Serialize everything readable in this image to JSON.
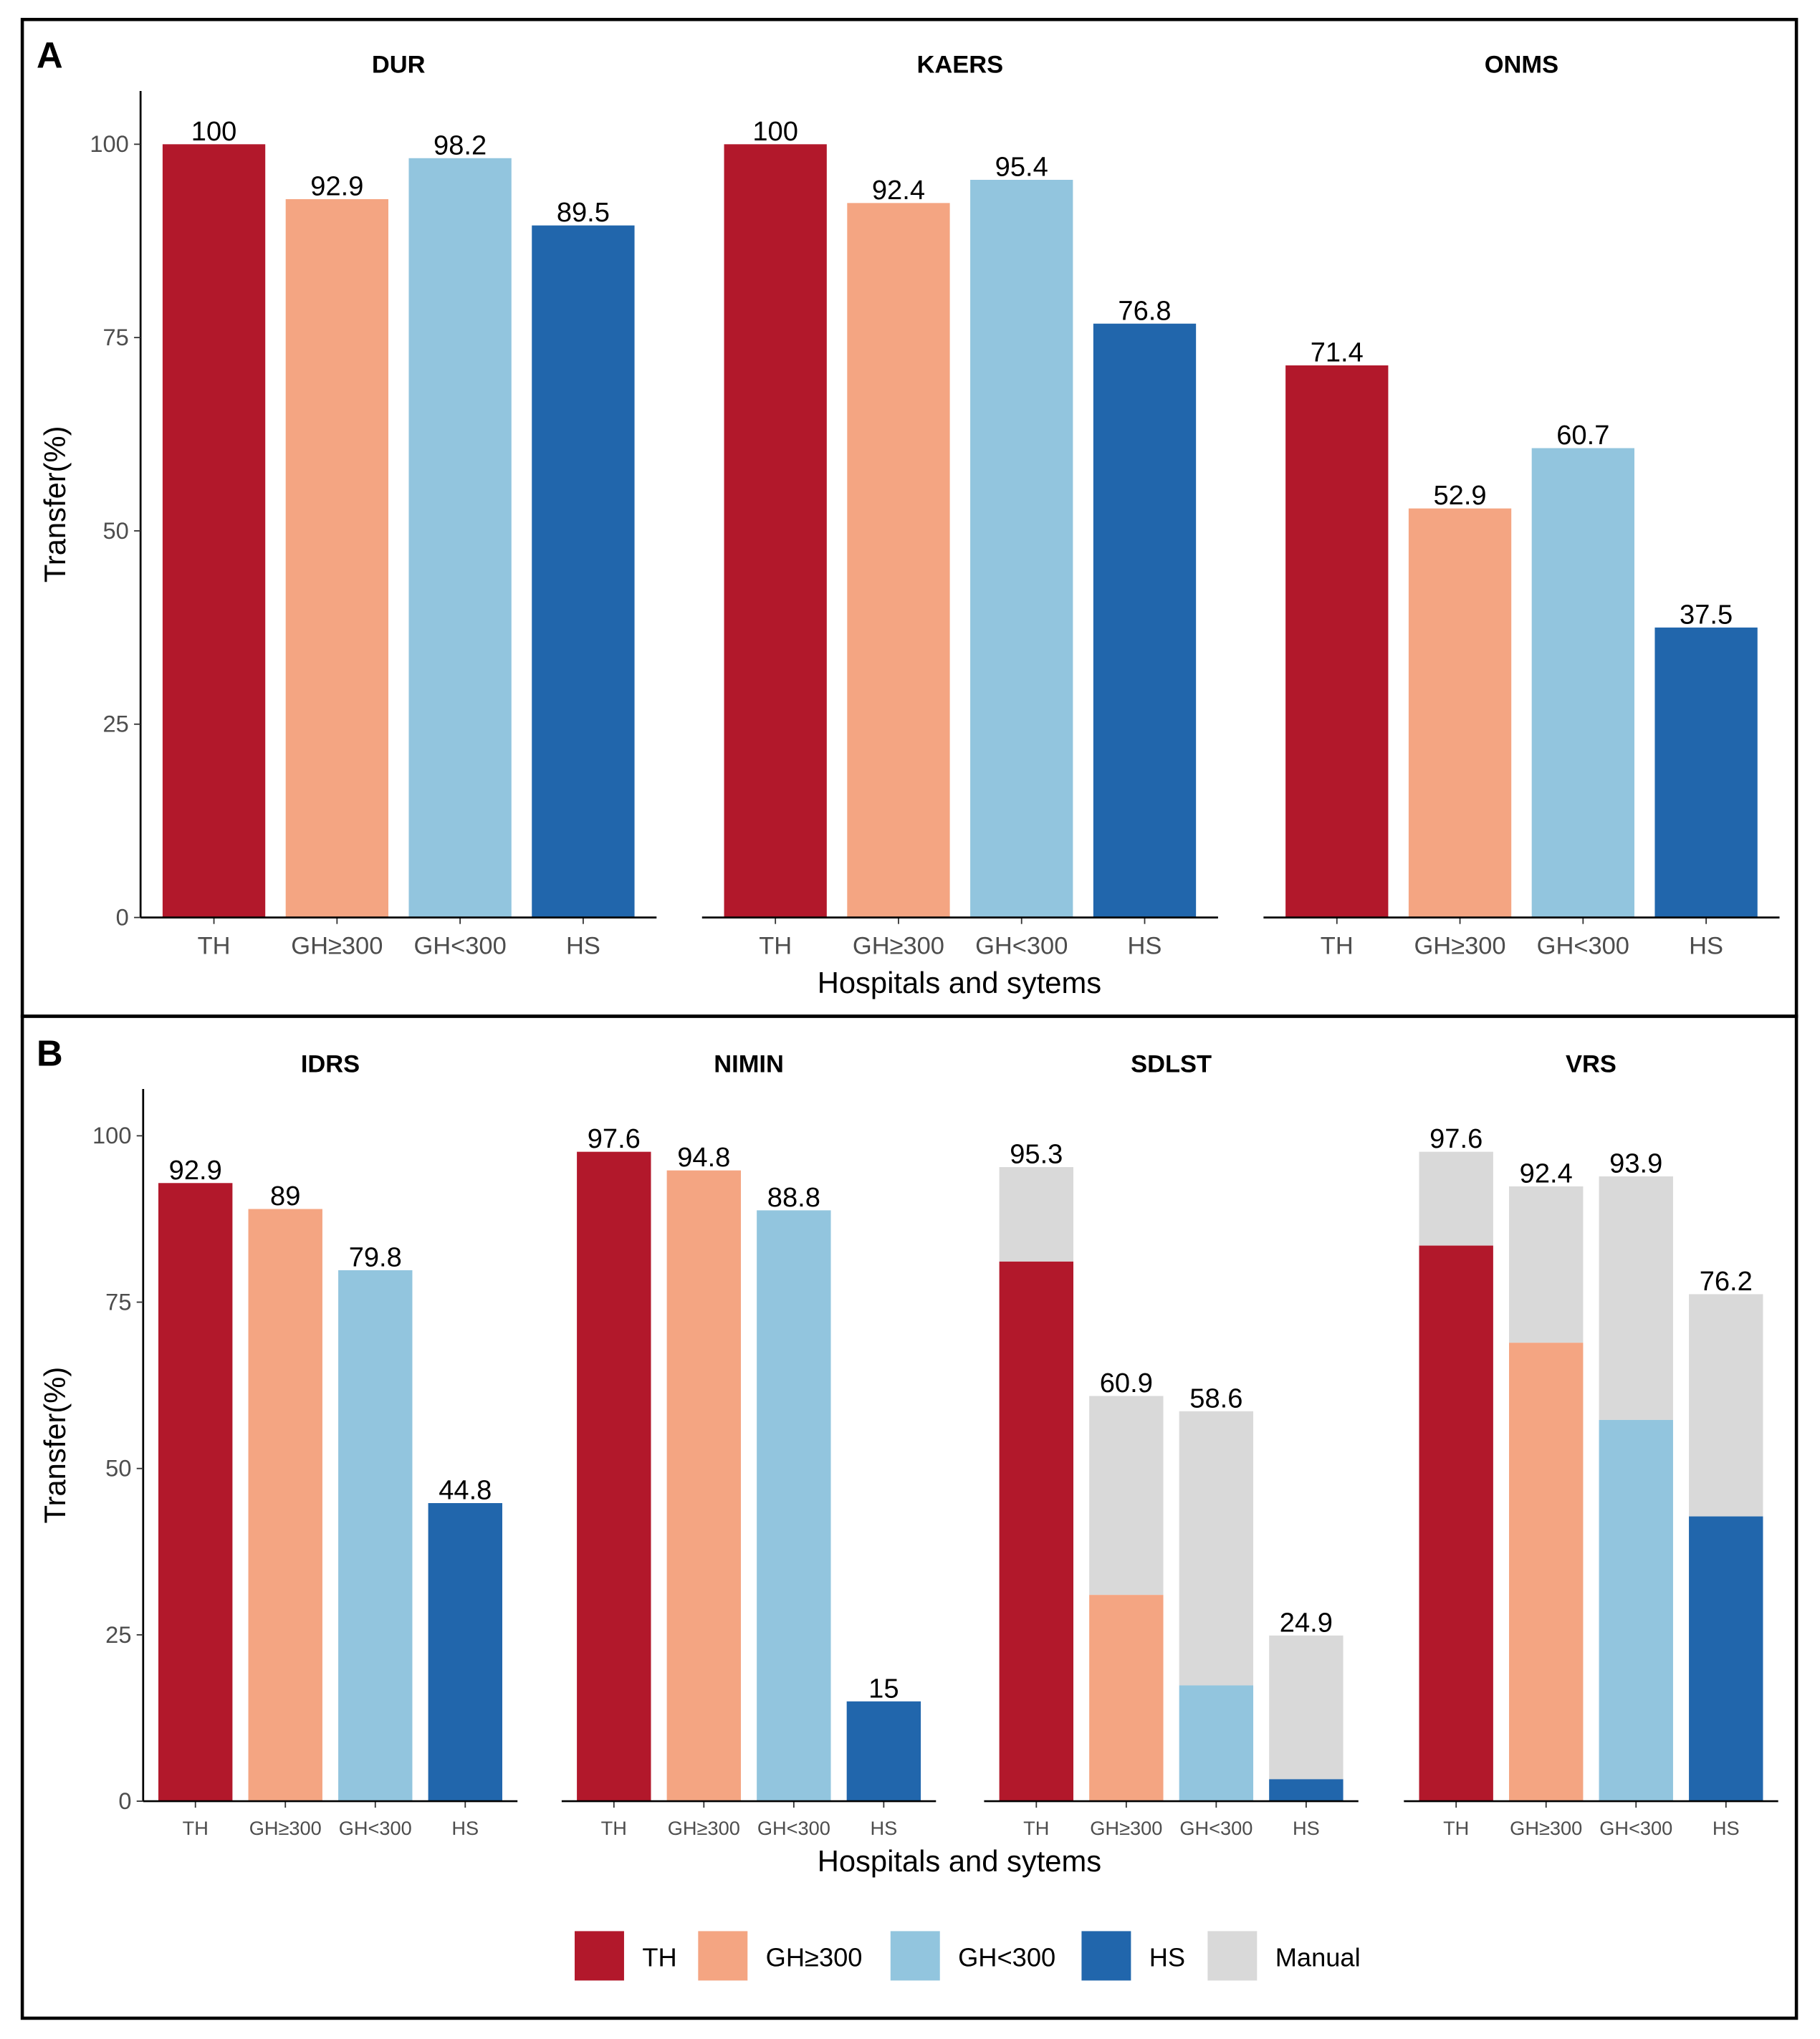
{
  "chart_data": [
    {
      "panel": "A",
      "type": "bar",
      "ylabel": "Transfer(%)",
      "xlabel": "Hospitals and sytems",
      "ylim": [
        0,
        105
      ],
      "yticks": [
        0,
        25,
        50,
        75,
        100
      ],
      "categories": [
        "TH",
        "GH≥300",
        "GH<300",
        "HS"
      ],
      "facets": [
        {
          "title": "DUR",
          "values": [
            100,
            92.9,
            98.2,
            89.5
          ],
          "labels": [
            "100",
            "92.9",
            "98.2",
            "89.5"
          ]
        },
        {
          "title": "KAERS",
          "values": [
            100,
            92.4,
            95.4,
            76.8
          ],
          "labels": [
            "100",
            "92.4",
            "95.4",
            "76.8"
          ]
        },
        {
          "title": "ONMS",
          "values": [
            71.4,
            52.9,
            60.7,
            37.5
          ],
          "labels": [
            "71.4",
            "52.9",
            "60.7",
            "37.5"
          ]
        }
      ]
    },
    {
      "panel": "B",
      "type": "bar",
      "stacked": true,
      "ylabel": "Transfer(%)",
      "xlabel": "Hospitals and sytems",
      "ylim": [
        0,
        105
      ],
      "yticks": [
        0,
        25,
        50,
        75,
        100
      ],
      "categories": [
        "TH",
        "GH≥300",
        "GH<300",
        "HS"
      ],
      "facets": [
        {
          "title": "IDRS",
          "system": [
            92.9,
            89,
            79.8,
            44.8
          ],
          "total": [
            92.9,
            89,
            79.8,
            44.8
          ],
          "labels": [
            "92.9",
            "89",
            "79.8",
            "44.8"
          ]
        },
        {
          "title": "NIMIN",
          "system": [
            97.6,
            94.8,
            88.8,
            15
          ],
          "total": [
            97.6,
            94.8,
            88.8,
            15
          ],
          "labels": [
            "97.6",
            "94.8",
            "88.8",
            "15"
          ]
        },
        {
          "title": "SDLST",
          "system": [
            81.1,
            31.0,
            17.4,
            3.3
          ],
          "total": [
            95.3,
            60.9,
            58.6,
            24.9
          ],
          "labels": [
            "95.3",
            "60.9",
            "58.6",
            "24.9"
          ]
        },
        {
          "title": "VRS",
          "system": [
            83.5,
            68.9,
            57.3,
            42.8
          ],
          "total": [
            97.6,
            92.4,
            93.9,
            76.2
          ],
          "labels": [
            "97.6",
            "92.4",
            "93.9",
            "76.2"
          ]
        }
      ]
    }
  ],
  "legend": {
    "position": "bottom",
    "items": [
      {
        "label": "TH",
        "color": "#B2182B"
      },
      {
        "label": "GH≥300",
        "color": "#F4A582"
      },
      {
        "label": "GH<300",
        "color": "#92C5DE"
      },
      {
        "label": "HS",
        "color": "#2166AC"
      },
      {
        "label": "Manual",
        "color": "#D9D9D9"
      }
    ]
  },
  "colors": {
    "manual": "#D9D9D9",
    "axis": "#000000",
    "tick_text": "#4D4D4D"
  }
}
